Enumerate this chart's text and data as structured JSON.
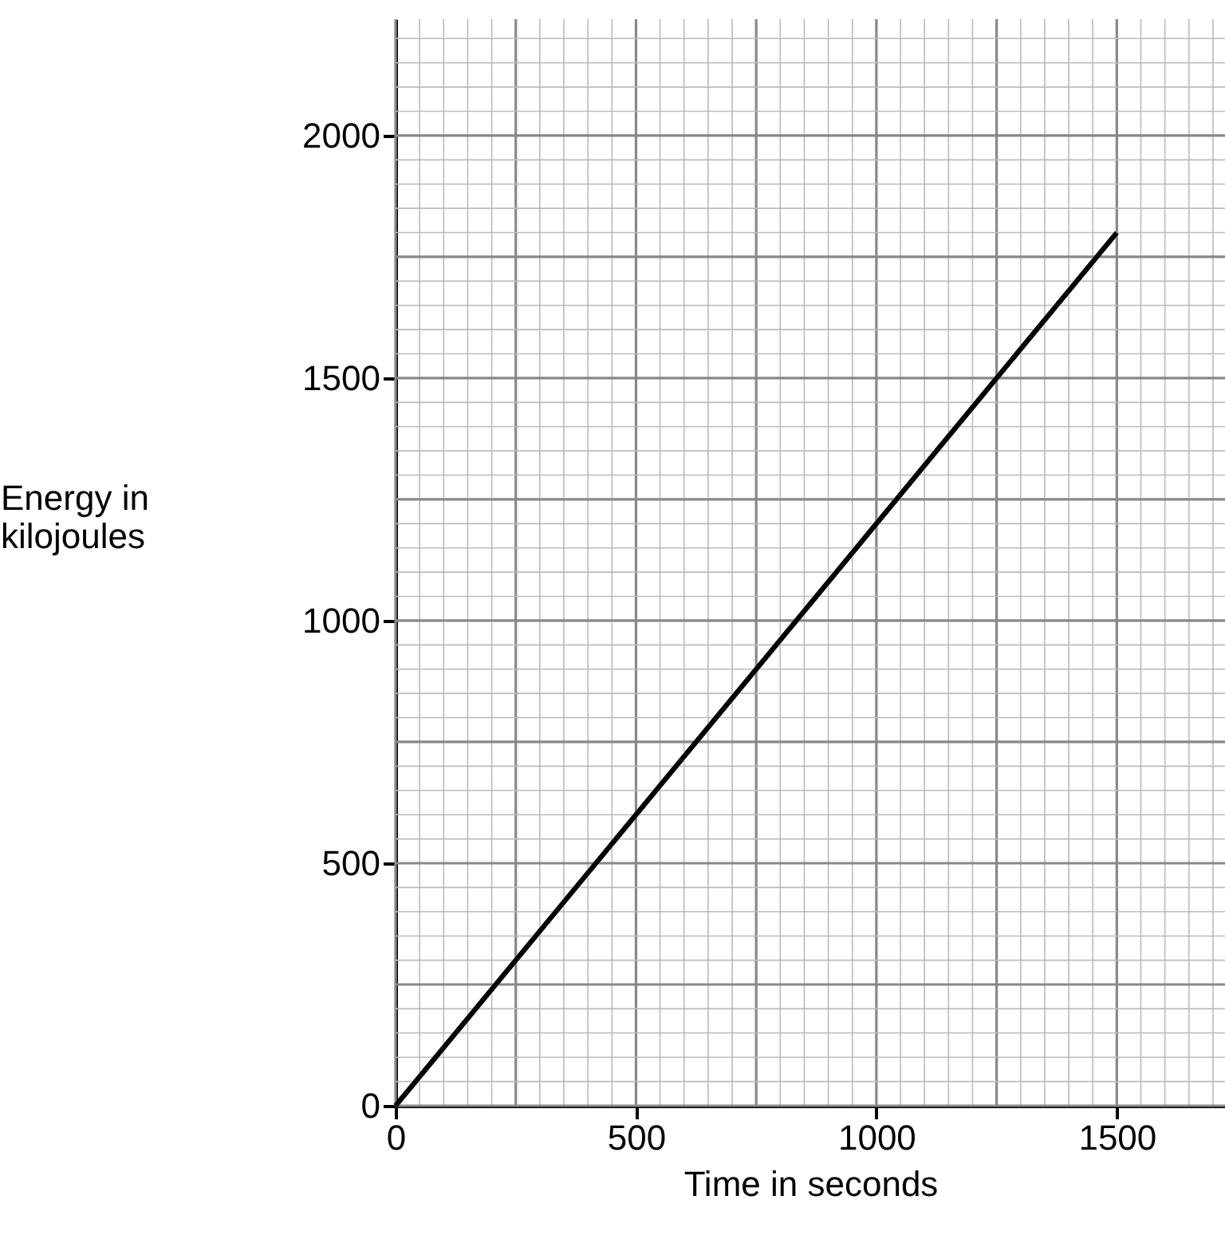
{
  "chart_data": {
    "type": "line",
    "xlabel": "Time in seconds",
    "ylabel": "Energy in kilojoules",
    "x": [
      0,
      1500
    ],
    "series": [
      {
        "color": "#000000",
        "values": [
          0,
          1800
        ]
      }
    ],
    "xlim": [
      0,
      1725
    ],
    "ylim": [
      0,
      2240
    ],
    "xticks": [
      0,
      500,
      1000,
      1500
    ],
    "yticks": [
      0,
      500,
      1000,
      1500,
      2000
    ],
    "grid": true,
    "line_style": "solid"
  }
}
